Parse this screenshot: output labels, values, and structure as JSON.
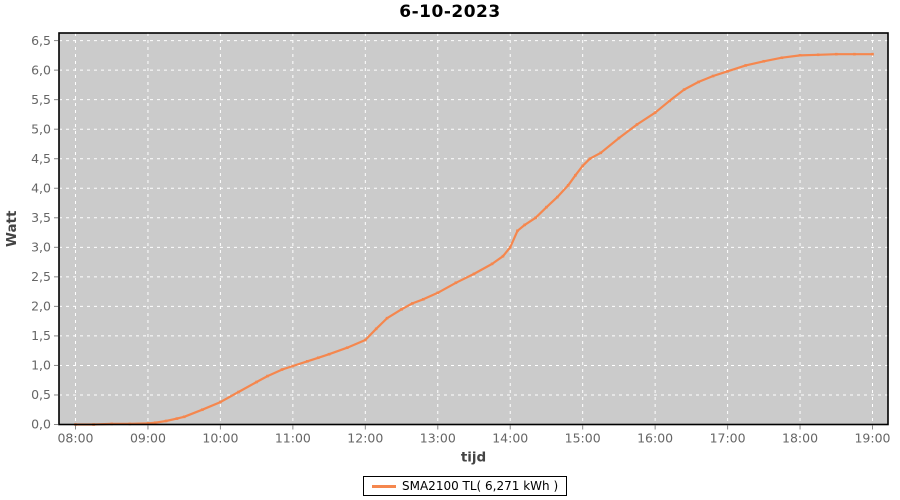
{
  "title": "6-10-2023",
  "legend": {
    "label": "SMA2100 TL( 6,271 kWh )"
  },
  "colors": {
    "plot_background": "#cbcbcb",
    "gridline": "#ffffff",
    "series": "#f5874e",
    "axis_border": "#000000",
    "tick_label": "#666666",
    "axis_label": "#444444",
    "tick_mark": "#888888"
  },
  "chart_data": {
    "type": "line",
    "title": "6-10-2023",
    "xlabel": "tijd",
    "ylabel": "Watt",
    "x_tick_labels": [
      "08:00",
      "09:00",
      "10:00",
      "11:00",
      "12:00",
      "13:00",
      "14:00",
      "15:00",
      "16:00",
      "17:00",
      "18:00",
      "19:00"
    ],
    "x_tick_hours": [
      8,
      9,
      10,
      11,
      12,
      13,
      14,
      15,
      16,
      17,
      18,
      19
    ],
    "y_tick_labels": [
      "0,0",
      "0,5",
      "1,0",
      "1,5",
      "2,0",
      "2,5",
      "3,0",
      "3,5",
      "4,0",
      "4,5",
      "5,0",
      "5,5",
      "6,0",
      "6,5"
    ],
    "y_tick_values": [
      0,
      0.5,
      1.0,
      1.5,
      2.0,
      2.5,
      3.0,
      3.5,
      4.0,
      4.5,
      5.0,
      5.5,
      6.0,
      6.5
    ],
    "ylim": [
      0,
      6.5
    ],
    "xlim_hours": [
      8,
      19
    ],
    "grid": "white dashed on gray background",
    "legend_position": "bottom",
    "series": [
      {
        "name": "SMA2100 TL( 6,271 kWh )",
        "color": "#f5874e",
        "total_kwh_label": "6,271 kWh",
        "x_hours": [
          8.0,
          8.25,
          8.5,
          8.75,
          9.0,
          9.1,
          9.25,
          9.4,
          9.5,
          9.75,
          10.0,
          10.25,
          10.5,
          10.65,
          10.85,
          11.0,
          11.2,
          11.35,
          11.5,
          11.75,
          12.0,
          12.15,
          12.3,
          12.5,
          12.65,
          12.8,
          13.0,
          13.25,
          13.5,
          13.75,
          13.9,
          14.0,
          14.1,
          14.2,
          14.35,
          14.5,
          14.65,
          14.8,
          14.9,
          15.0,
          15.1,
          15.25,
          15.5,
          15.75,
          16.0,
          16.2,
          16.4,
          16.6,
          16.8,
          17.0,
          17.25,
          17.5,
          17.75,
          18.0,
          18.25,
          18.5,
          18.75,
          19.0
        ],
        "values": [
          0.0,
          0.0,
          0.01,
          0.01,
          0.02,
          0.03,
          0.06,
          0.1,
          0.13,
          0.25,
          0.38,
          0.55,
          0.72,
          0.82,
          0.93,
          0.99,
          1.07,
          1.13,
          1.19,
          1.3,
          1.43,
          1.62,
          1.8,
          1.95,
          2.05,
          2.12,
          2.23,
          2.4,
          2.55,
          2.72,
          2.85,
          3.0,
          3.28,
          3.38,
          3.5,
          3.68,
          3.85,
          4.05,
          4.22,
          4.38,
          4.5,
          4.6,
          4.85,
          5.08,
          5.28,
          5.48,
          5.67,
          5.8,
          5.9,
          5.98,
          6.08,
          6.15,
          6.21,
          6.25,
          6.26,
          6.27,
          6.27,
          6.27
        ]
      }
    ]
  }
}
